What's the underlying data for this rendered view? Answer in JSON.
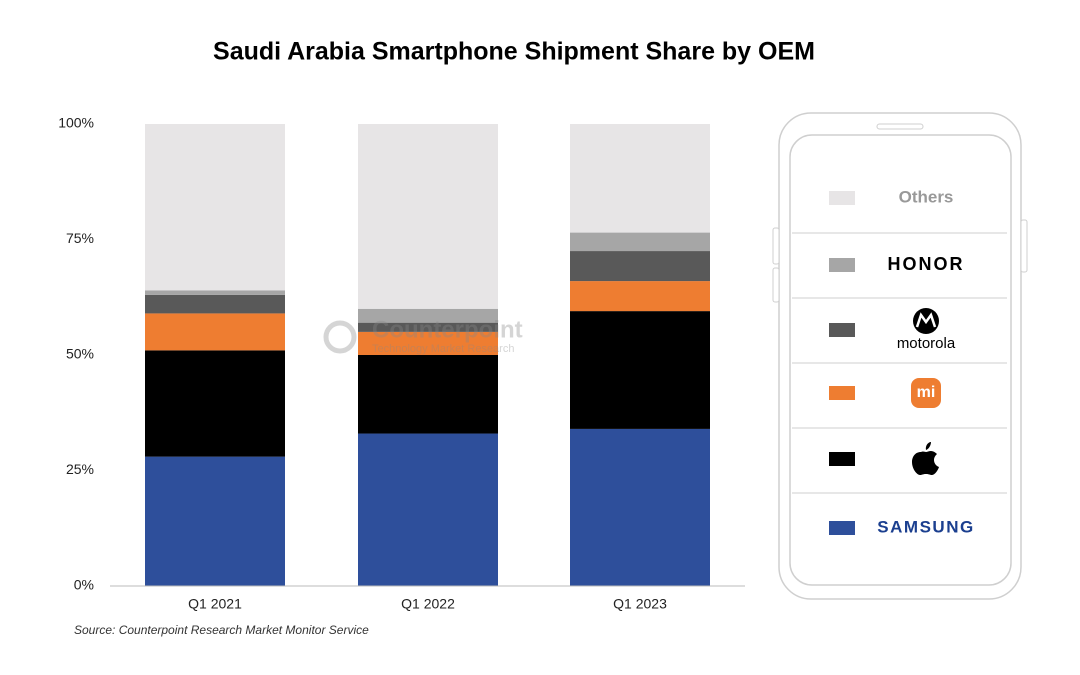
{
  "chart_data": {
    "type": "stacked_bar",
    "title": "Saudi Arabia Smartphone Shipment Share by OEM",
    "source": "Source: Counterpoint Research Market Monitor Service",
    "watermark": {
      "name": "Counterpoint",
      "tagline": "Technology Market Research"
    },
    "categories": [
      "Q1 2021",
      "Q1 2022",
      "Q1 2023"
    ],
    "series": [
      {
        "name": "SAMSUNG",
        "color": "#2e4f9b",
        "values": [
          28,
          33,
          34
        ]
      },
      {
        "name": null,
        "color": "#000000",
        "values": [
          23,
          17,
          25.5
        ]
      },
      {
        "name": "mi",
        "color": "#ee7d31",
        "values": [
          8,
          5,
          6.5
        ]
      },
      {
        "name": "motorola",
        "color": "#595959",
        "values": [
          4,
          2,
          6.5
        ]
      },
      {
        "name": "HONOR",
        "color": "#a6a6a6",
        "values": [
          1,
          3,
          4
        ]
      },
      {
        "name": "Others",
        "color": "#e7e5e6",
        "values": [
          36,
          40,
          23.5
        ]
      }
    ],
    "ylim": [
      0,
      100
    ],
    "yticks": [
      {
        "value": 0,
        "label": "0%"
      },
      {
        "value": 25,
        "label": "25%"
      },
      {
        "value": 50,
        "label": "50%"
      },
      {
        "value": 75,
        "label": "75%"
      },
      {
        "value": 100,
        "label": "100%"
      }
    ]
  }
}
